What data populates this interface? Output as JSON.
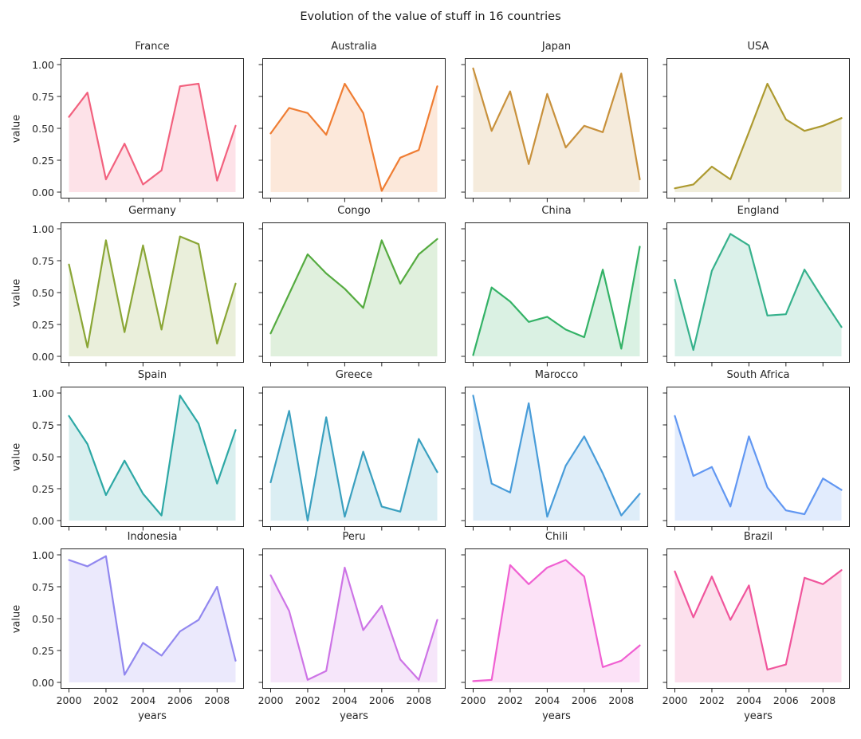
{
  "figure": {
    "title": "Evolution of the value of stuff in 16 countries"
  },
  "axes": {
    "xlabel": "years",
    "ylabel": "value",
    "xtick_labels": [
      "2000",
      "2002",
      "2004",
      "2006",
      "2008"
    ],
    "ytick_labels": [
      "0.00",
      "0.25",
      "0.50",
      "0.75",
      "1.00"
    ],
    "spine_color": "#262626"
  },
  "chart_data": {
    "type": "area",
    "title": "Evolution of the value of stuff in 16 countries",
    "layout": "4x4 small multiples, shared axes, no grid, legend off",
    "xlabel": "years",
    "ylabel": "value",
    "ylim": [
      0,
      1
    ],
    "grid": false,
    "x": [
      2000,
      2001,
      2002,
      2003,
      2004,
      2005,
      2006,
      2007,
      2008,
      2009
    ],
    "xticks": [
      2000,
      2002,
      2004,
      2006,
      2008
    ],
    "yticks": [
      0,
      0.25,
      0.5,
      0.75,
      1
    ],
    "fill_opacity": 0.18,
    "series": [
      {
        "name": "France",
        "color": "#f2617e",
        "values": [
          0.59,
          0.78,
          0.1,
          0.38,
          0.06,
          0.17,
          0.83,
          0.85,
          0.09,
          0.52
        ]
      },
      {
        "name": "Australia",
        "color": "#ef7d33",
        "values": [
          0.46,
          0.66,
          0.62,
          0.45,
          0.85,
          0.62,
          0.01,
          0.27,
          0.33,
          0.83
        ]
      },
      {
        "name": "Japan",
        "color": "#c8913c",
        "values": [
          0.97,
          0.48,
          0.79,
          0.22,
          0.77,
          0.35,
          0.52,
          0.47,
          0.93,
          0.1
        ]
      },
      {
        "name": "USA",
        "color": "#ad9a30",
        "values": [
          0.03,
          0.06,
          0.2,
          0.1,
          0.47,
          0.85,
          0.57,
          0.48,
          0.52,
          0.58
        ]
      },
      {
        "name": "Germany",
        "color": "#8aa636",
        "values": [
          0.72,
          0.07,
          0.91,
          0.19,
          0.87,
          0.21,
          0.94,
          0.88,
          0.1,
          0.57
        ]
      },
      {
        "name": "Congo",
        "color": "#55ab40",
        "values": [
          0.18,
          0.49,
          0.8,
          0.65,
          0.53,
          0.38,
          0.91,
          0.57,
          0.8,
          0.92
        ]
      },
      {
        "name": "China",
        "color": "#33b266",
        "values": [
          0.01,
          0.54,
          0.43,
          0.27,
          0.31,
          0.21,
          0.15,
          0.68,
          0.06,
          0.86
        ]
      },
      {
        "name": "England",
        "color": "#36b18c",
        "values": [
          0.6,
          0.05,
          0.67,
          0.96,
          0.87,
          0.32,
          0.33,
          0.68,
          0.45,
          0.23
        ]
      },
      {
        "name": "Spain",
        "color": "#2da8a5",
        "values": [
          0.82,
          0.6,
          0.2,
          0.47,
          0.21,
          0.04,
          0.98,
          0.76,
          0.29,
          0.71
        ]
      },
      {
        "name": "Greece",
        "color": "#3aa0bf",
        "values": [
          0.3,
          0.86,
          0.0,
          0.81,
          0.03,
          0.54,
          0.11,
          0.07,
          0.64,
          0.38
        ]
      },
      {
        "name": "Marocco",
        "color": "#489cd9",
        "values": [
          0.98,
          0.29,
          0.22,
          0.92,
          0.03,
          0.43,
          0.66,
          0.37,
          0.04,
          0.21
        ]
      },
      {
        "name": "South Africa",
        "color": "#6197f2",
        "values": [
          0.82,
          0.35,
          0.42,
          0.11,
          0.66,
          0.26,
          0.08,
          0.05,
          0.33,
          0.24
        ]
      },
      {
        "name": "Indonesia",
        "color": "#9187ef",
        "values": [
          0.96,
          0.91,
          0.99,
          0.06,
          0.31,
          0.21,
          0.4,
          0.49,
          0.75,
          0.17
        ]
      },
      {
        "name": "Peru",
        "color": "#cd74e6",
        "values": [
          0.84,
          0.56,
          0.02,
          0.09,
          0.9,
          0.41,
          0.6,
          0.18,
          0.02,
          0.49
        ]
      },
      {
        "name": "Chili",
        "color": "#f060d2",
        "values": [
          0.01,
          0.02,
          0.92,
          0.77,
          0.9,
          0.96,
          0.83,
          0.12,
          0.17,
          0.29
        ]
      },
      {
        "name": "Brazil",
        "color": "#f0559c",
        "values": [
          0.87,
          0.51,
          0.83,
          0.49,
          0.76,
          0.1,
          0.14,
          0.82,
          0.77,
          0.88
        ]
      }
    ]
  }
}
